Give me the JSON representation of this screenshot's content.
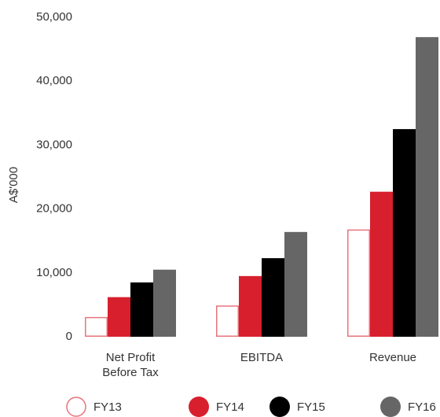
{
  "chart_data": {
    "type": "bar",
    "y_label": "A$'000",
    "categories": [
      "Net Profit Before Tax",
      "EBITDA",
      "Revenue"
    ],
    "series": [
      {
        "name": "FY13",
        "color": "#e8747c",
        "outline": true,
        "values": [
          3000,
          4800,
          16700
        ]
      },
      {
        "name": "FY14",
        "color": "#d71f2e",
        "values": [
          6200,
          9500,
          22700
        ]
      },
      {
        "name": "FY15",
        "color": "#000000",
        "values": [
          8500,
          12300,
          32500
        ]
      },
      {
        "name": "FY16",
        "color": "#666666",
        "values": [
          10500,
          16400,
          46900
        ]
      }
    ],
    "ylim": [
      0,
      50000
    ],
    "yticks": [
      0,
      {
        "value": 10000,
        "label": "10,000"
      },
      {
        "value": 20000,
        "label": "20,000"
      },
      {
        "value": 30000,
        "label": "30,000"
      },
      {
        "value": 40000,
        "label": "40,000"
      },
      {
        "value": 50000,
        "label": "50,000"
      }
    ],
    "grid": false
  }
}
